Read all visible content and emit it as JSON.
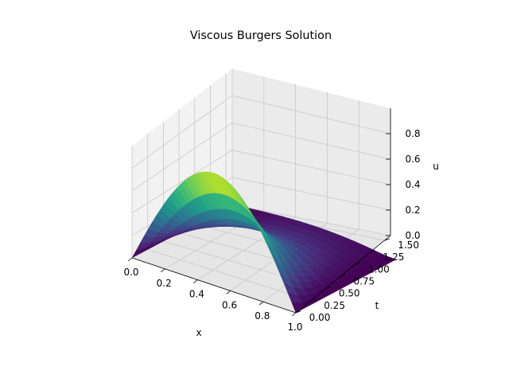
{
  "chart_data": {
    "type": "surface",
    "title": "Viscous Burgers Solution",
    "xlabel": "x",
    "ylabel": "t",
    "zlabel": "u",
    "xlim": [
      0,
      1
    ],
    "ylim": [
      0,
      1.6
    ],
    "zlim": [
      0,
      1
    ],
    "x_ticks": [
      "0.0",
      "0.2",
      "0.4",
      "0.6",
      "0.8",
      "1.0"
    ],
    "y_ticks": [
      "0.00",
      "0.25",
      "0.50",
      "0.75",
      "1.00",
      "1.25",
      "1.50"
    ],
    "z_ticks": [
      "0.0",
      "0.2",
      "0.4",
      "0.6",
      "0.8"
    ],
    "colormap": "viridis",
    "grid": true,
    "surface": {
      "x_samples": [
        0.0,
        0.025,
        0.05,
        0.075,
        0.1,
        0.125,
        0.15,
        0.175,
        0.2,
        0.225,
        0.25,
        0.275,
        0.3,
        0.325,
        0.35,
        0.375,
        0.4,
        0.425,
        0.45,
        0.475,
        0.5,
        0.525,
        0.55,
        0.575,
        0.6,
        0.625,
        0.65,
        0.675,
        0.7,
        0.725,
        0.75,
        0.775,
        0.8,
        0.825,
        0.85,
        0.875,
        0.9,
        0.925,
        0.95,
        0.975,
        1.0
      ],
      "t_samples": [
        0.0,
        0.16,
        0.32,
        0.48,
        0.64,
        0.8,
        0.96,
        1.12,
        1.28,
        1.44,
        1.6
      ],
      "u": [
        [
          0.0,
          0.078,
          0.156,
          0.233,
          0.309,
          0.383,
          0.454,
          0.522,
          0.588,
          0.649,
          0.707,
          0.76,
          0.809,
          0.853,
          0.891,
          0.924,
          0.951,
          0.972,
          0.988,
          0.997,
          1.0,
          0.997,
          0.988,
          0.972,
          0.951,
          0.924,
          0.891,
          0.853,
          0.809,
          0.76,
          0.707,
          0.649,
          0.588,
          0.522,
          0.454,
          0.383,
          0.309,
          0.233,
          0.156,
          0.078,
          0.0
        ],
        [
          0.0,
          0.058,
          0.116,
          0.174,
          0.231,
          0.287,
          0.341,
          0.393,
          0.443,
          0.489,
          0.533,
          0.573,
          0.61,
          0.644,
          0.673,
          0.699,
          0.721,
          0.738,
          0.751,
          0.759,
          0.763,
          0.762,
          0.756,
          0.745,
          0.73,
          0.71,
          0.684,
          0.654,
          0.619,
          0.58,
          0.536,
          0.488,
          0.436,
          0.381,
          0.323,
          0.263,
          0.202,
          0.14,
          0.081,
          0.028,
          0.0
        ],
        [
          0.0,
          0.043,
          0.087,
          0.13,
          0.172,
          0.214,
          0.254,
          0.293,
          0.33,
          0.365,
          0.397,
          0.427,
          0.455,
          0.48,
          0.502,
          0.521,
          0.537,
          0.55,
          0.56,
          0.566,
          0.569,
          0.568,
          0.564,
          0.556,
          0.545,
          0.53,
          0.511,
          0.488,
          0.461,
          0.43,
          0.396,
          0.358,
          0.317,
          0.272,
          0.225,
          0.176,
          0.127,
          0.079,
          0.037,
          0.009,
          0.0
        ],
        [
          0.0,
          0.032,
          0.065,
          0.097,
          0.128,
          0.159,
          0.189,
          0.218,
          0.246,
          0.272,
          0.296,
          0.318,
          0.339,
          0.358,
          0.374,
          0.388,
          0.4,
          0.41,
          0.417,
          0.422,
          0.424,
          0.424,
          0.421,
          0.415,
          0.406,
          0.395,
          0.381,
          0.364,
          0.344,
          0.321,
          0.295,
          0.266,
          0.234,
          0.199,
          0.162,
          0.124,
          0.086,
          0.051,
          0.022,
          0.005,
          0.0
        ],
        [
          0.0,
          0.024,
          0.048,
          0.072,
          0.095,
          0.118,
          0.141,
          0.162,
          0.183,
          0.202,
          0.22,
          0.237,
          0.252,
          0.266,
          0.278,
          0.289,
          0.298,
          0.305,
          0.311,
          0.314,
          0.316,
          0.316,
          0.314,
          0.309,
          0.303,
          0.294,
          0.284,
          0.271,
          0.256,
          0.239,
          0.219,
          0.197,
          0.172,
          0.145,
          0.117,
          0.088,
          0.06,
          0.034,
          0.014,
          0.003,
          0.0
        ],
        [
          0.0,
          0.018,
          0.036,
          0.054,
          0.071,
          0.088,
          0.105,
          0.121,
          0.136,
          0.151,
          0.164,
          0.177,
          0.188,
          0.198,
          0.207,
          0.215,
          0.222,
          0.227,
          0.231,
          0.234,
          0.235,
          0.235,
          0.233,
          0.23,
          0.225,
          0.219,
          0.211,
          0.202,
          0.191,
          0.178,
          0.163,
          0.146,
          0.128,
          0.108,
          0.087,
          0.065,
          0.044,
          0.025,
          0.01,
          0.002,
          0.0
        ],
        [
          0.0,
          0.013,
          0.027,
          0.04,
          0.053,
          0.066,
          0.078,
          0.09,
          0.101,
          0.112,
          0.122,
          0.131,
          0.14,
          0.147,
          0.154,
          0.16,
          0.165,
          0.169,
          0.172,
          0.174,
          0.175,
          0.175,
          0.174,
          0.171,
          0.168,
          0.163,
          0.157,
          0.15,
          0.142,
          0.132,
          0.121,
          0.109,
          0.095,
          0.08,
          0.064,
          0.048,
          0.033,
          0.019,
          0.008,
          0.002,
          0.0
        ],
        [
          0.0,
          0.01,
          0.02,
          0.03,
          0.039,
          0.049,
          0.058,
          0.067,
          0.075,
          0.083,
          0.091,
          0.098,
          0.104,
          0.11,
          0.115,
          0.119,
          0.123,
          0.126,
          0.128,
          0.13,
          0.13,
          0.13,
          0.129,
          0.127,
          0.125,
          0.121,
          0.117,
          0.112,
          0.105,
          0.098,
          0.09,
          0.081,
          0.071,
          0.06,
          0.048,
          0.036,
          0.024,
          0.014,
          0.006,
          0.001,
          0.0
        ],
        [
          0.0,
          0.008,
          0.015,
          0.022,
          0.029,
          0.036,
          0.043,
          0.05,
          0.056,
          0.062,
          0.068,
          0.073,
          0.077,
          0.082,
          0.085,
          0.089,
          0.091,
          0.094,
          0.095,
          0.097,
          0.097,
          0.097,
          0.096,
          0.095,
          0.093,
          0.09,
          0.087,
          0.083,
          0.078,
          0.073,
          0.067,
          0.06,
          0.053,
          0.044,
          0.036,
          0.027,
          0.018,
          0.01,
          0.004,
          0.001,
          0.0
        ],
        [
          0.0,
          0.006,
          0.011,
          0.017,
          0.022,
          0.027,
          0.032,
          0.037,
          0.042,
          0.046,
          0.05,
          0.054,
          0.058,
          0.061,
          0.063,
          0.066,
          0.068,
          0.07,
          0.071,
          0.072,
          0.072,
          0.072,
          0.072,
          0.071,
          0.069,
          0.067,
          0.065,
          0.062,
          0.058,
          0.054,
          0.05,
          0.045,
          0.039,
          0.033,
          0.027,
          0.02,
          0.014,
          0.008,
          0.003,
          0.001,
          0.0
        ],
        [
          0.0,
          0.004,
          0.008,
          0.012,
          0.016,
          0.02,
          0.024,
          0.028,
          0.031,
          0.034,
          0.037,
          0.04,
          0.043,
          0.045,
          0.047,
          0.049,
          0.051,
          0.052,
          0.053,
          0.053,
          0.054,
          0.054,
          0.053,
          0.053,
          0.051,
          0.05,
          0.048,
          0.046,
          0.043,
          0.04,
          0.037,
          0.033,
          0.029,
          0.025,
          0.02,
          0.015,
          0.01,
          0.006,
          0.002,
          0.001,
          0.0
        ]
      ]
    }
  }
}
